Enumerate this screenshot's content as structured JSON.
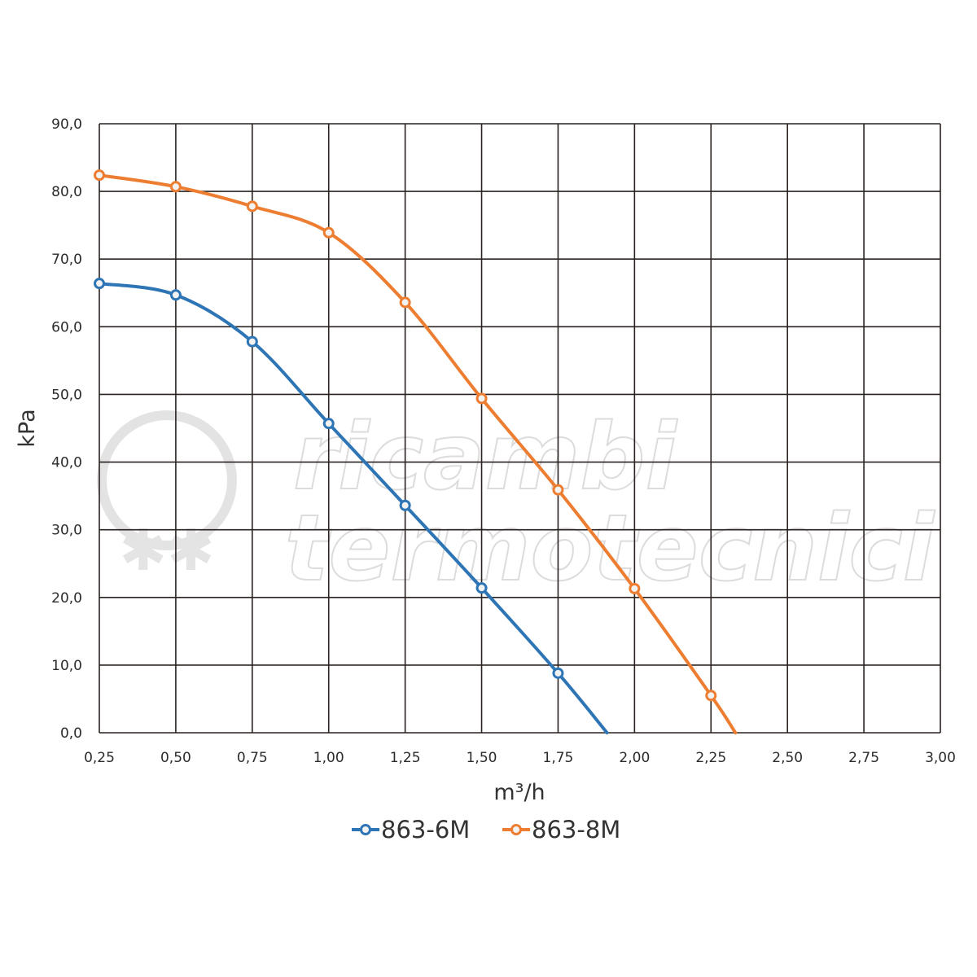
{
  "watermark": {
    "line1": "ricambi",
    "line2": "termotecnici"
  },
  "chart_data": {
    "type": "line",
    "xlabel": "m³/h",
    "ylabel": "kPa",
    "xlim": [
      0.25,
      3.0
    ],
    "ylim": [
      0,
      90
    ],
    "x_ticks": [
      "0,25",
      "0,50",
      "0,75",
      "1,00",
      "1,25",
      "1,50",
      "1,75",
      "2,00",
      "2,25",
      "2,50",
      "2,75",
      "3,00"
    ],
    "y_ticks": [
      "0,0",
      "10,0",
      "20,0",
      "30,0",
      "40,0",
      "50,0",
      "60,0",
      "70,0",
      "80,0",
      "90,0"
    ],
    "grid": true,
    "legend_position": "bottom-center",
    "series": [
      {
        "name": "863-6M",
        "color": "#2e75b6",
        "x": [
          0.25,
          0.5,
          0.75,
          1.0,
          1.25,
          1.5,
          1.75
        ],
        "y": [
          66.4,
          64.7,
          57.8,
          45.7,
          33.6,
          21.4,
          8.8
        ],
        "curve_end": [
          1.91,
          0
        ]
      },
      {
        "name": "863-8M",
        "color": "#ed7d31",
        "x": [
          0.25,
          0.5,
          0.75,
          1.0,
          1.25,
          1.5,
          1.75,
          2.0,
          2.25
        ],
        "y": [
          82.4,
          80.7,
          77.8,
          73.9,
          63.6,
          49.4,
          35.9,
          21.3,
          5.5
        ],
        "curve_end": [
          2.33,
          0
        ]
      }
    ]
  }
}
